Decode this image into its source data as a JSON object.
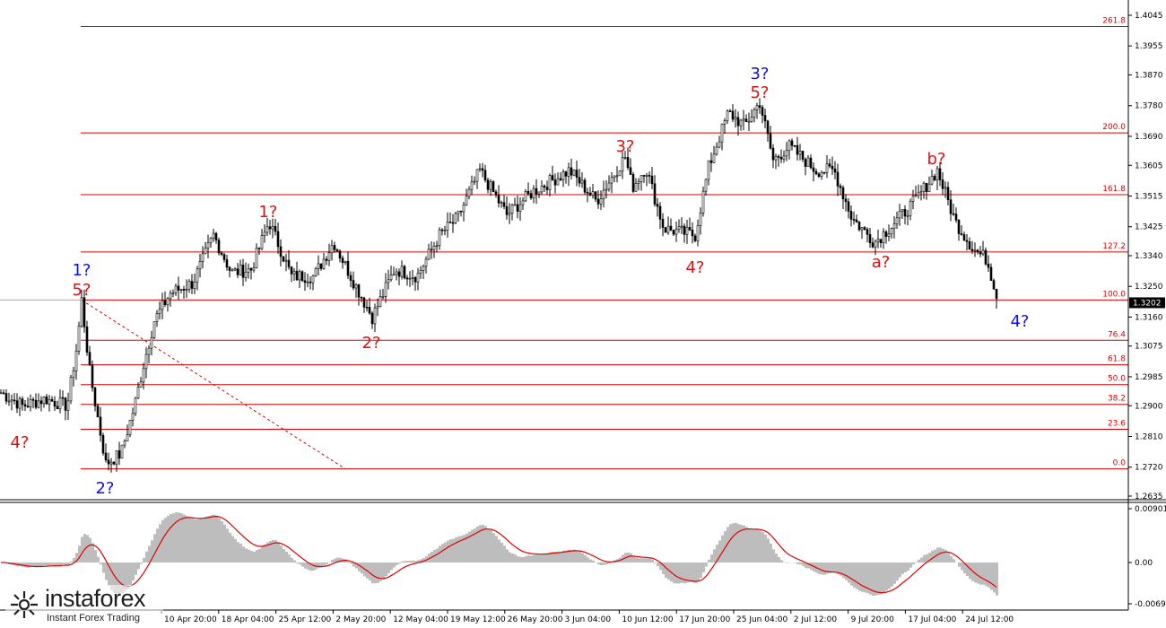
{
  "chart_data": {
    "type": "candlestick",
    "price_axis": {
      "min": 1.2635,
      "max": 1.4045,
      "ticks": [
        "1.4045",
        "1.3955",
        "1.3870",
        "1.3780",
        "1.3690",
        "1.3605",
        "1.3515",
        "1.3425",
        "1.3340",
        "1.3250",
        "1.3160",
        "1.3075",
        "1.2985",
        "1.2900",
        "1.2810",
        "1.2720",
        "1.2635"
      ],
      "current_price": "1.3202"
    },
    "time_axis": {
      "ticks": [
        "10 Apr 20:00",
        "18 Apr 04:00",
        "25 Apr 12:00",
        "2 May 20:00",
        "12 May 04:00",
        "19 May 12:00",
        "26 May 20:00",
        "3 Jun 04:00",
        "10 Jun 12:00",
        "17 Jun 20:00",
        "25 Jun 04:00",
        "2 Jul 12:00",
        "9 Jul 20:00",
        "17 Jul 04:00",
        "24 Jul 12:00"
      ]
    },
    "fibonacci_levels": [
      {
        "label": "261.8",
        "price": 1.4012
      },
      {
        "label": "200.0",
        "price": 1.37
      },
      {
        "label": "161.8",
        "price": 1.3519
      },
      {
        "label": "127.2",
        "price": 1.3351
      },
      {
        "label": "100.0",
        "price": 1.321
      },
      {
        "label": "76.4",
        "price": 1.3092
      },
      {
        "label": "61.8",
        "price": 1.302
      },
      {
        "label": "50.0",
        "price": 1.2962
      },
      {
        "label": "38.2",
        "price": 1.2904
      },
      {
        "label": "23.6",
        "price": 1.2831
      },
      {
        "label": "0.0",
        "price": 1.2715
      }
    ],
    "wave_labels": [
      {
        "text": "4?",
        "color": "#e01010"
      },
      {
        "text": "1?",
        "color": "#1010e0"
      },
      {
        "text": "5?",
        "color": "#e01010"
      },
      {
        "text": "2?",
        "color": "#1010e0"
      },
      {
        "text": "1?",
        "color": "#e01010"
      },
      {
        "text": "2?",
        "color": "#e01010"
      },
      {
        "text": "3?",
        "color": "#e01010"
      },
      {
        "text": "4?",
        "color": "#e01010"
      },
      {
        "text": "3?",
        "color": "#1010e0"
      },
      {
        "text": "5?",
        "color": "#e01010"
      },
      {
        "text": "a?",
        "color": "#e01010"
      },
      {
        "text": "b?",
        "color": "#e01010"
      },
      {
        "text": "4?",
        "color": "#1010e0"
      }
    ],
    "price_anchors": [
      [
        0,
        1.294
      ],
      [
        25,
        1.29
      ],
      [
        50,
        1.292
      ],
      [
        75,
        1.29
      ],
      [
        86,
        1.308
      ],
      [
        91,
        1.321
      ],
      [
        100,
        1.3
      ],
      [
        108,
        1.288
      ],
      [
        118,
        1.273
      ],
      [
        135,
        1.276
      ],
      [
        150,
        1.29
      ],
      [
        160,
        1.302
      ],
      [
        172,
        1.315
      ],
      [
        190,
        1.323
      ],
      [
        215,
        1.326
      ],
      [
        238,
        1.34
      ],
      [
        258,
        1.329
      ],
      [
        280,
        1.33
      ],
      [
        300,
        1.344
      ],
      [
        325,
        1.328
      ],
      [
        350,
        1.328
      ],
      [
        372,
        1.338
      ],
      [
        395,
        1.326
      ],
      [
        415,
        1.316
      ],
      [
        440,
        1.33
      ],
      [
        465,
        1.328
      ],
      [
        490,
        1.34
      ],
      [
        510,
        1.345
      ],
      [
        535,
        1.359
      ],
      [
        565,
        1.346
      ],
      [
        595,
        1.353
      ],
      [
        635,
        1.359
      ],
      [
        665,
        1.35
      ],
      [
        697,
        1.363
      ],
      [
        705,
        1.354
      ],
      [
        720,
        1.36
      ],
      [
        740,
        1.342
      ],
      [
        775,
        1.34
      ],
      [
        790,
        1.36
      ],
      [
        812,
        1.376
      ],
      [
        830,
        1.372
      ],
      [
        847,
        1.379
      ],
      [
        862,
        1.362
      ],
      [
        880,
        1.366
      ],
      [
        910,
        1.359
      ],
      [
        930,
        1.359
      ],
      [
        950,
        1.345
      ],
      [
        975,
        1.338
      ],
      [
        995,
        1.343
      ],
      [
        1020,
        1.35
      ],
      [
        1045,
        1.359
      ],
      [
        1065,
        1.344
      ],
      [
        1085,
        1.336
      ],
      [
        1100,
        1.333
      ],
      [
        1113,
        1.321
      ]
    ],
    "oscillator": {
      "ticks": [
        "0.00901",
        "0.00",
        "-0.00692"
      ]
    }
  },
  "brand": {
    "name": "instaforex",
    "tagline": "Instant Forex Trading"
  }
}
